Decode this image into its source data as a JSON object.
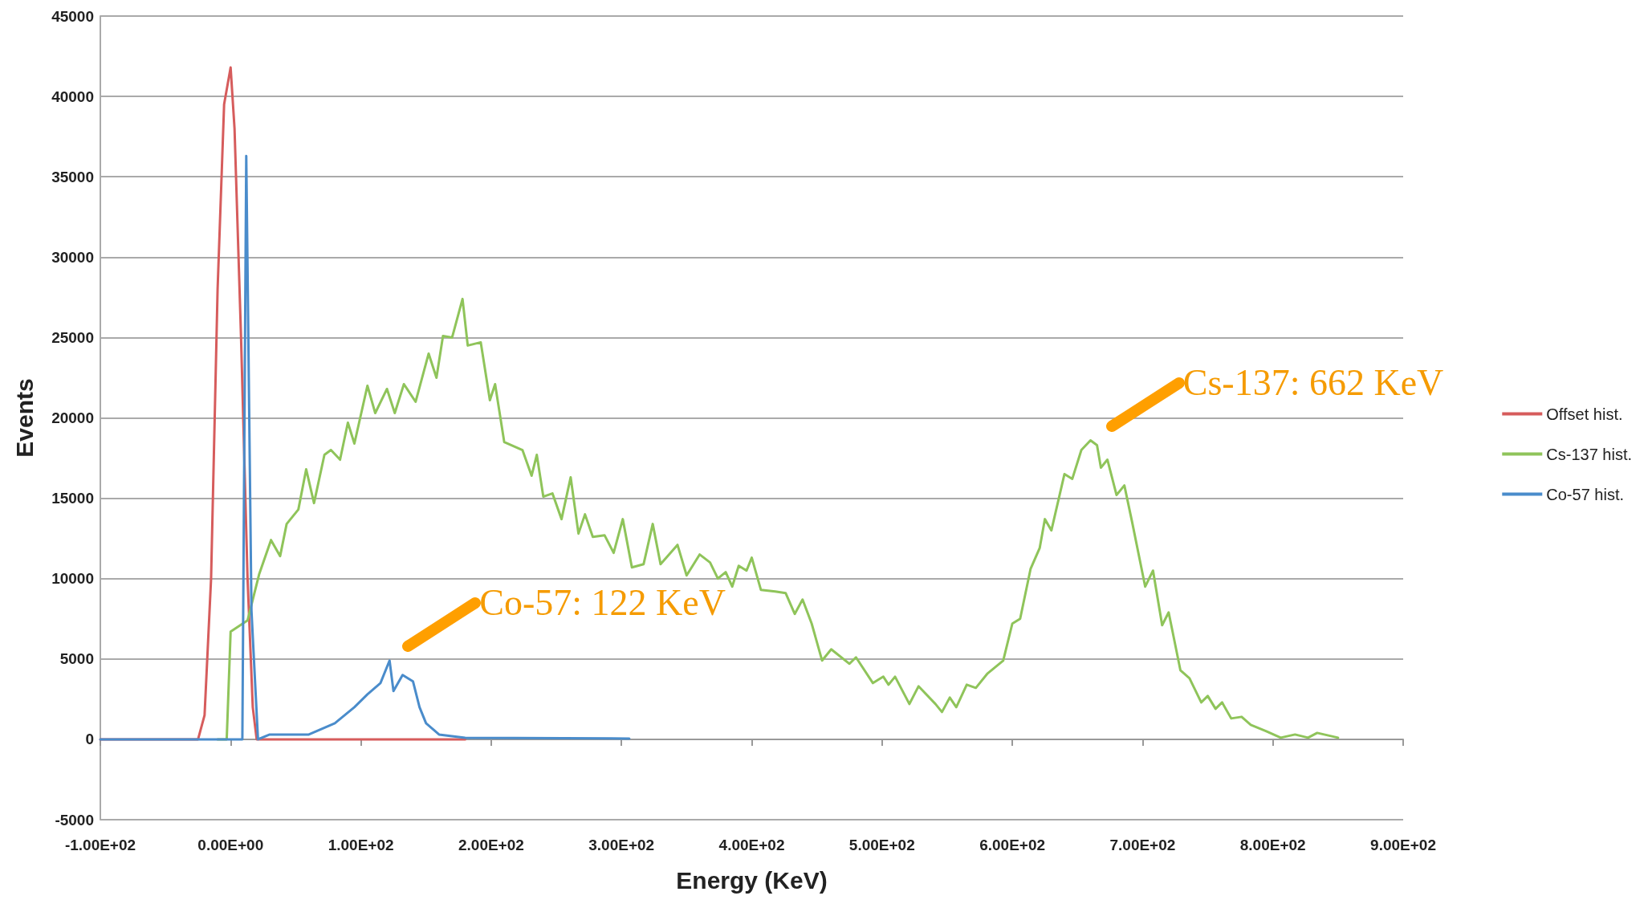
{
  "chart_data": {
    "type": "line",
    "xlabel": "Energy (KeV)",
    "ylabel": "Events",
    "xlim": [
      -100,
      900
    ],
    "xticks": [
      {
        "value": -100,
        "label": "-1.00E+02"
      },
      {
        "value": 0,
        "label": "0.00E+00"
      },
      {
        "value": 100,
        "label": "1.00E+02"
      },
      {
        "value": 200,
        "label": "2.00E+02"
      },
      {
        "value": 300,
        "label": "3.00E+02"
      },
      {
        "value": 400,
        "label": "4.00E+02"
      },
      {
        "value": 500,
        "label": "5.00E+02"
      },
      {
        "value": 600,
        "label": "6.00E+02"
      },
      {
        "value": 700,
        "label": "7.00E+02"
      },
      {
        "value": 800,
        "label": "8.00E+02"
      },
      {
        "value": 900,
        "label": "9.00E+02"
      }
    ],
    "ylim": [
      -5000,
      45000
    ],
    "yticks": [
      -5000,
      0,
      5000,
      10000,
      15000,
      20000,
      25000,
      30000,
      35000,
      40000,
      45000
    ],
    "grid": "y",
    "legend": "right",
    "marker": "none",
    "line_style": "solid",
    "series": [
      {
        "name": "Offset hist.",
        "color": "#d65c5c",
        "x": [
          -100,
          -25,
          -20,
          -15,
          -10,
          -5,
          0,
          3,
          8,
          13,
          17,
          20,
          180
        ],
        "values": [
          0,
          0,
          1500,
          10000,
          28000,
          39500,
          41800,
          38000,
          25000,
          10000,
          2000,
          0,
          0
        ]
      },
      {
        "name": "Cs-137 hist.",
        "color": "#8fc45a",
        "x": [
          -10,
          -3,
          0,
          13,
          22,
          31,
          38,
          43,
          52,
          58,
          64,
          72,
          77,
          84,
          90,
          95,
          105,
          111,
          120,
          126,
          133,
          142,
          152,
          158,
          163,
          170,
          178,
          182,
          192,
          199,
          203,
          210,
          224,
          231,
          235,
          240,
          247,
          254,
          261,
          267,
          272,
          278,
          287,
          294,
          301,
          308,
          317,
          324,
          330,
          343,
          350,
          360,
          368,
          374,
          380,
          385,
          390,
          396,
          400,
          407,
          418,
          426,
          433,
          439,
          446,
          454,
          461,
          475,
          480,
          493,
          501,
          505,
          510,
          521,
          528,
          541,
          546,
          552,
          557,
          565,
          572,
          581,
          593,
          600,
          606,
          614,
          621,
          625,
          630,
          640,
          646,
          653,
          660,
          665,
          668,
          673,
          680,
          686,
          692,
          702,
          708,
          715,
          720,
          729,
          736,
          745,
          750,
          756,
          761,
          768,
          776,
          783,
          795,
          806,
          817,
          827,
          834,
          850
        ],
        "values": [
          0,
          0,
          6700,
          7400,
          10300,
          12400,
          11400,
          13400,
          14300,
          16800,
          14700,
          17700,
          18000,
          17400,
          19700,
          18400,
          22000,
          20300,
          21800,
          20300,
          22100,
          21000,
          24000,
          22500,
          25100,
          25000,
          27400,
          24500,
          24700,
          21100,
          22100,
          18500,
          18000,
          16400,
          17700,
          15100,
          15300,
          13700,
          16300,
          12800,
          14000,
          12600,
          12700,
          11600,
          13700,
          10700,
          10900,
          13400,
          10900,
          12100,
          10200,
          11500,
          11000,
          10000,
          10400,
          9500,
          10800,
          10500,
          11300,
          9300,
          9200,
          9100,
          7800,
          8700,
          7200,
          4900,
          5600,
          4700,
          5100,
          3500,
          3900,
          3400,
          3900,
          2200,
          3300,
          2200,
          1700,
          2600,
          2000,
          3400,
          3200,
          4100,
          4900,
          7200,
          7500,
          10600,
          11900,
          13700,
          13000,
          16500,
          16200,
          18000,
          18600,
          18300,
          16900,
          17400,
          15200,
          15800,
          13500,
          9500,
          10500,
          7100,
          7900,
          4300,
          3800,
          2300,
          2700,
          1900,
          2300,
          1300,
          1400,
          900,
          500,
          100,
          300,
          100,
          400,
          100
        ]
      },
      {
        "name": "Co-57 hist.",
        "color": "#4a8ccb",
        "x": [
          -100,
          9,
          12,
          16,
          21,
          30,
          60,
          80,
          95,
          105,
          115,
          122,
          125,
          132,
          140,
          145,
          150,
          160,
          180,
          306
        ],
        "values": [
          0,
          0,
          36300,
          8000,
          0,
          300,
          300,
          1000,
          2000,
          2800,
          3500,
          4900,
          3000,
          4000,
          3600,
          2000,
          1000,
          300,
          100,
          50
        ]
      }
    ],
    "annotations": [
      {
        "text": "Co-57: 122 KeV",
        "x": 122,
        "y": 4900
      },
      {
        "text": "Cs-137: 662 KeV",
        "x": 662,
        "y": 18600
      }
    ]
  }
}
